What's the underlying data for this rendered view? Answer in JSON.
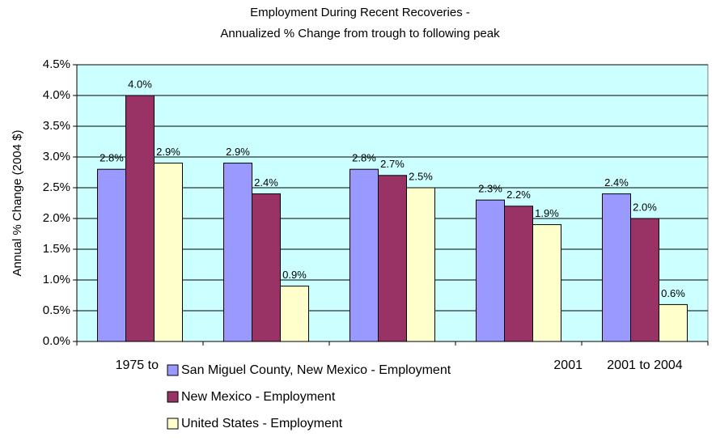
{
  "chart_data": {
    "type": "bar",
    "title": [
      "Employment During Recent Recoveries -",
      "Annualized % Change from trough to following peak"
    ],
    "ylabel": "Annual % Change (2004 $)",
    "categories": [
      "1975 to",
      null,
      null,
      "2001",
      "2001 to 2004"
    ],
    "series": [
      {
        "name": "San Miguel County, New Mexico - Employment",
        "color": "#9999ff",
        "values": [
          2.8,
          2.9,
          2.8,
          2.3,
          2.4
        ],
        "value_labels": [
          "2.8%",
          "2.9%",
          "2.8%",
          "2.3%",
          "2.4%"
        ]
      },
      {
        "name": "New Mexico - Employment",
        "color": "#993366",
        "values": [
          4.0,
          2.4,
          2.7,
          2.2,
          2.0
        ],
        "value_labels": [
          "4.0%",
          "2.4%",
          "2.7%",
          "2.2%",
          "2.0%"
        ]
      },
      {
        "name": "United States - Employment",
        "color": "#ffffcc",
        "values": [
          2.9,
          0.9,
          2.5,
          1.9,
          0.6
        ],
        "value_labels": [
          "2.9%",
          "0.9%",
          "2.5%",
          "1.9%",
          "0.6%"
        ]
      }
    ],
    "ylim": [
      0,
      4.5
    ],
    "yticks": [
      {
        "value": 0,
        "label": "0.0%"
      },
      {
        "value": 0.5,
        "label": "0.5%"
      },
      {
        "value": 1,
        "label": "1.0%"
      },
      {
        "value": 1.5,
        "label": "1.5%"
      },
      {
        "value": 2,
        "label": "2.0%"
      },
      {
        "value": 2.5,
        "label": "2.5%"
      },
      {
        "value": 3,
        "label": "3.0%"
      },
      {
        "value": 3.5,
        "label": "3.5%"
      },
      {
        "value": 4,
        "label": "4.0%"
      },
      {
        "value": 4.5,
        "label": "4.5%"
      }
    ],
    "grid": true,
    "legend": "bottom",
    "plot_background": "#ccffff"
  }
}
